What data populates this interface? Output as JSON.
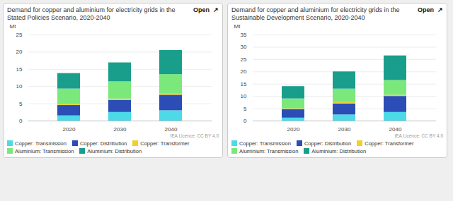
{
  "chart_data": [
    {
      "type": "bar",
      "stacked": true,
      "title": "Demand for copper and aluminium for electricity grids in the Stated Policies Scenario, 2020-2040",
      "ylabel": "Mt",
      "annotations": [
        "Open  ↗",
        "IEA Licence: CC BY 4.0"
      ],
      "categories": [
        "2020",
        "2030",
        "2040"
      ],
      "series": [
        {
          "name": "Copper: Transmission",
          "color": "#4dd9e8",
          "values": [
            1.5,
            2.5,
            3.0
          ]
        },
        {
          "name": "Copper: Distribution",
          "color": "#2b4db5",
          "values": [
            3.0,
            3.5,
            4.5
          ]
        },
        {
          "name": "Copper: Transformer",
          "color": "#f0d030",
          "values": [
            0.3,
            0.4,
            0.5
          ]
        },
        {
          "name": "Aluminium: Transmission",
          "color": "#7be87b",
          "values": [
            4.5,
            5.0,
            5.5
          ]
        },
        {
          "name": "Aluminium: Distribution",
          "color": "#1a9e8c",
          "values": [
            4.5,
            5.5,
            7.0
          ]
        }
      ],
      "ylim": [
        0,
        25
      ],
      "yticks": [
        0,
        5,
        10,
        15,
        20,
        25
      ],
      "grid": true,
      "legend": "lower left"
    },
    {
      "type": "bar",
      "stacked": true,
      "title": "Demand for copper and aluminium for electricity grids in the Sustainable Development Scenario, 2020-2040",
      "ylabel": "Mt",
      "annotations": [
        "Open  ↗",
        "IEA Licence: CC BY 4.0"
      ],
      "categories": [
        "2020",
        "2030",
        "2040"
      ],
      "series": [
        {
          "name": "Copper: Transmission",
          "color": "#4dd9e8",
          "values": [
            1.2,
            2.5,
            3.5
          ]
        },
        {
          "name": "Copper: Distribution",
          "color": "#2b4db5",
          "values": [
            3.5,
            4.5,
            6.5
          ]
        },
        {
          "name": "Copper: Transformer",
          "color": "#f0d030",
          "values": [
            0.3,
            0.5,
            0.5
          ]
        },
        {
          "name": "Aluminium: Transmission",
          "color": "#7be87b",
          "values": [
            4.0,
            5.5,
            6.0
          ]
        },
        {
          "name": "Aluminium: Distribution",
          "color": "#1a9e8c",
          "values": [
            5.0,
            7.0,
            10.0
          ]
        }
      ],
      "ylim": [
        0,
        35
      ],
      "yticks": [
        0,
        5,
        10,
        15,
        20,
        25,
        30,
        35
      ],
      "grid": true,
      "legend": "lower left"
    }
  ]
}
